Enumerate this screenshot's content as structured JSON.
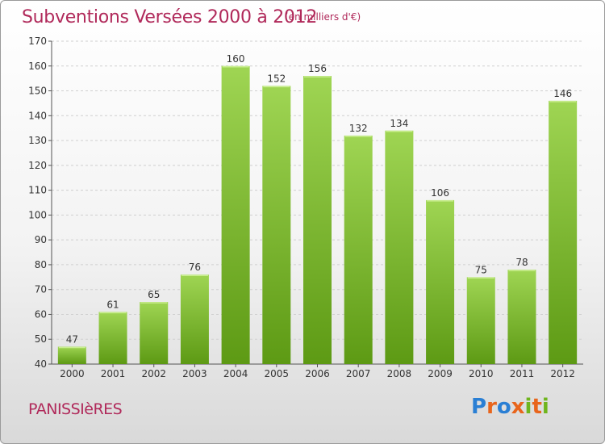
{
  "header": {
    "title": "Subventions Versées 2000 à 2012",
    "unit": "(en milliers d'€)"
  },
  "footer": {
    "commune": "PANISSIèRES",
    "logo": "Proxiti"
  },
  "colors": {
    "title": "#b0295a",
    "bar_light": "#9fd553",
    "bar_dark": "#5d9a14",
    "logo_letters": [
      "#2a7fd4",
      "#e8651c",
      "#2a7fd4",
      "#e8651c",
      "#6fb51d",
      "#e8651c",
      "#6fb51d"
    ]
  },
  "chart_data": {
    "type": "bar",
    "title": "Subventions Versées 2000 à 2012",
    "subtitle": "(en milliers d'€)",
    "categories": [
      "2000",
      "2001",
      "2002",
      "2003",
      "2004",
      "2005",
      "2006",
      "2007",
      "2008",
      "2009",
      "2010",
      "2011",
      "2012"
    ],
    "values": [
      47,
      61,
      65,
      76,
      160,
      152,
      156,
      132,
      134,
      106,
      75,
      78,
      146
    ],
    "ylim": [
      40,
      170
    ],
    "yticks": [
      40,
      50,
      60,
      70,
      80,
      90,
      100,
      110,
      120,
      130,
      140,
      150,
      160,
      170
    ],
    "grid": true,
    "legend": "none"
  }
}
